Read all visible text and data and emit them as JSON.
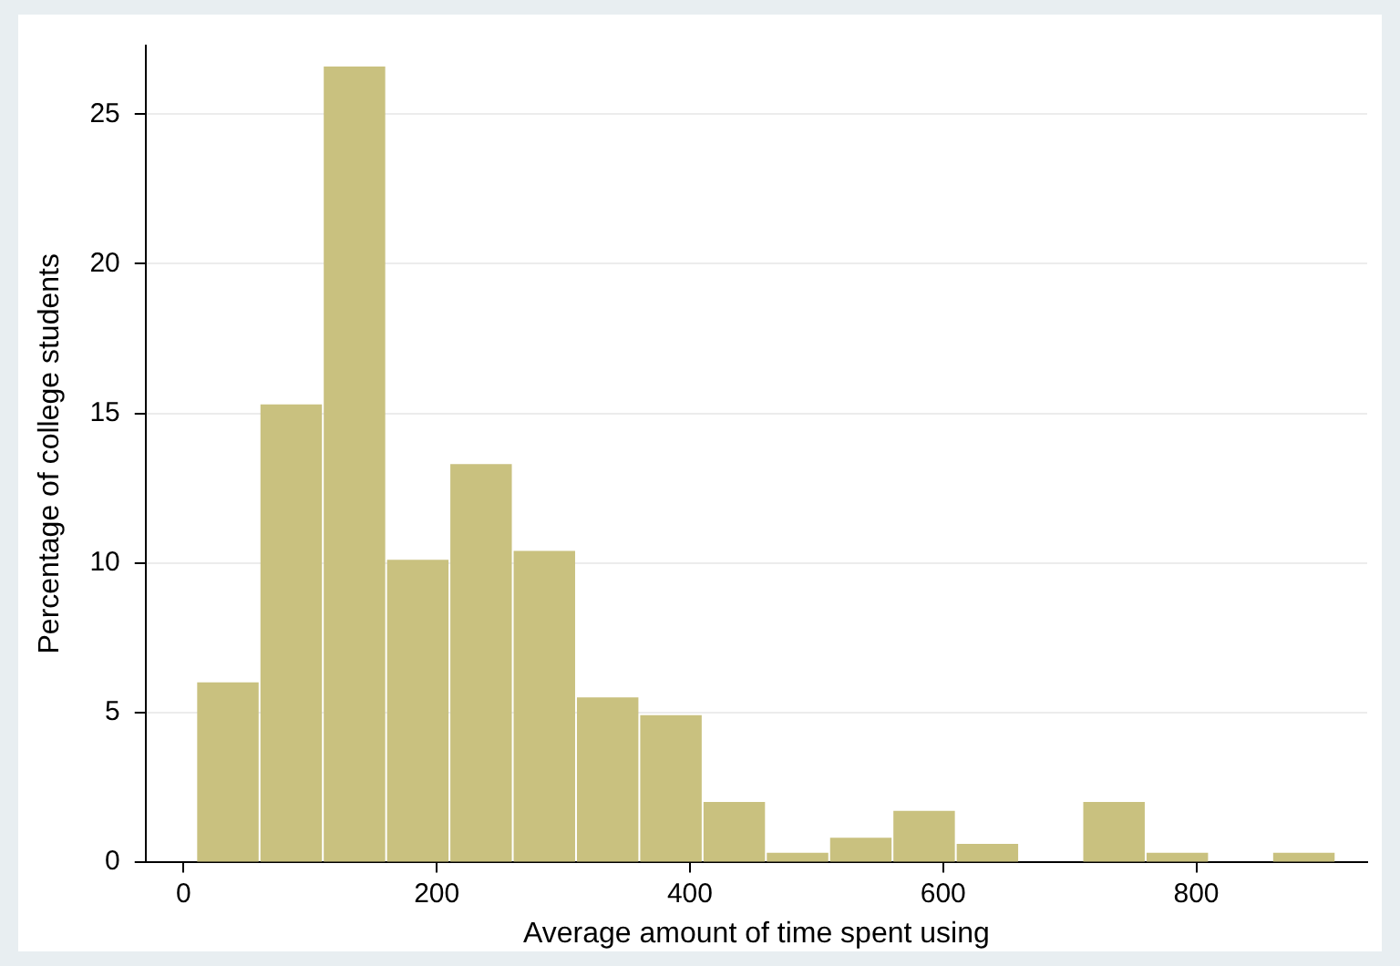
{
  "chart_data": {
    "type": "histogram",
    "xlabel": "Average amount of time spent using",
    "ylabel": "Percentage of college students",
    "bins": [
      10,
      60,
      110,
      160,
      210,
      260,
      310,
      360,
      410,
      460,
      510,
      560,
      610,
      660,
      710,
      760,
      810,
      860,
      910
    ],
    "values": [
      6.0,
      15.3,
      26.6,
      10.1,
      13.3,
      10.4,
      5.5,
      4.9,
      2.0,
      0.3,
      0.8,
      1.7,
      0.6,
      0,
      2.0,
      0.3,
      0,
      0.3
    ],
    "color": "#c9c17f",
    "xlim": [
      -30,
      935
    ],
    "xticks": [
      0,
      200,
      400,
      600,
      800
    ],
    "ylim": [
      0,
      27.3
    ],
    "yticks": [
      0,
      5,
      10,
      15,
      20,
      25
    ],
    "grid": "y",
    "legend": false
  }
}
